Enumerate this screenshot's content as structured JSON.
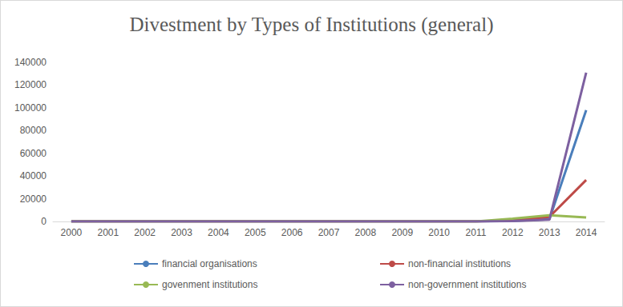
{
  "chart_data": {
    "type": "line",
    "title": "Divestment by Types of Institutions (general)",
    "categories": [
      "2000",
      "2001",
      "2002",
      "2003",
      "2004",
      "2005",
      "2006",
      "2007",
      "2008",
      "2009",
      "2010",
      "2011",
      "2012",
      "2013",
      "2014"
    ],
    "series": [
      {
        "name": "financial organisations",
        "color": "#4a7ebb",
        "values": [
          0,
          0,
          0,
          0,
          0,
          0,
          0,
          0,
          0,
          0,
          0,
          0,
          500,
          2000,
          98000
        ]
      },
      {
        "name": "non-financial institutions",
        "color": "#be4b48",
        "values": [
          0,
          0,
          0,
          0,
          0,
          0,
          0,
          0,
          0,
          0,
          0,
          0,
          800,
          4000,
          36500
        ]
      },
      {
        "name": "govenment institutions",
        "color": "#98b954",
        "values": [
          0,
          0,
          0,
          0,
          0,
          0,
          0,
          0,
          0,
          0,
          0,
          0,
          2500,
          5500,
          3500
        ]
      },
      {
        "name": "non-government institutions",
        "color": "#7d60a0",
        "values": [
          0,
          0,
          0,
          0,
          0,
          0,
          0,
          0,
          0,
          0,
          0,
          0,
          300,
          1500,
          131000
        ]
      }
    ],
    "ylim": [
      0,
      140000
    ],
    "yticks": [
      0,
      20000,
      40000,
      60000,
      80000,
      100000,
      120000,
      140000
    ],
    "grid": false,
    "legend": "bottom"
  }
}
